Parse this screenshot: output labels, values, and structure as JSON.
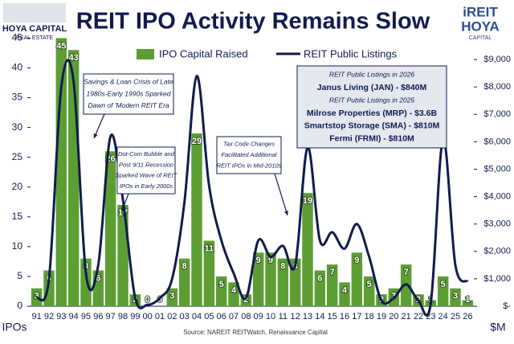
{
  "header": {
    "logo_left": [
      "HOYA CAPITAL",
      "REAL ESTATE"
    ],
    "logo_right": [
      "iREIT",
      "HOYA",
      "CAPITAL"
    ]
  },
  "chart_data": {
    "type": "bar",
    "title": "REIT IPO Activity Remains Slow",
    "source": "Source: NAREIT REITWatch, Renaissance Capital",
    "y_label": "IPOs",
    "y2_label": "$M",
    "categories": [
      "91",
      "92",
      "93",
      "94",
      "95",
      "96",
      "97",
      "98",
      "99",
      "00",
      "01",
      "02",
      "03",
      "04",
      "05",
      "06",
      "07",
      "08",
      "09",
      "10",
      "11",
      "12",
      "13",
      "14",
      "15",
      "16",
      "17",
      "18",
      "19",
      "20",
      "21",
      "22",
      "23",
      "24",
      "25",
      "26"
    ],
    "series": [
      {
        "name": "IPO Capital Raised",
        "type": "bar",
        "color": "#5c9e34",
        "values": [
          3,
          6,
          45,
          43,
          8,
          6,
          26,
          17,
          2,
          0,
          0,
          3,
          8,
          29,
          11,
          5,
          4,
          2,
          9,
          9,
          8,
          8,
          19,
          6,
          7,
          4,
          9,
          5,
          2,
          3,
          7,
          2,
          1,
          5,
          3,
          1
        ]
      },
      {
        "name": "REIT Public Listings",
        "type": "line",
        "axis": "y2",
        "color": "#101c4e",
        "values": [
          300,
          1000,
          8000,
          8200,
          1200,
          1500,
          6200,
          3900,
          300,
          50,
          300,
          1000,
          3800,
          8400,
          4400,
          2400,
          1200,
          300,
          2400,
          1800,
          2200,
          1500,
          5800,
          2400,
          2700,
          2100,
          3000,
          1800,
          200,
          300,
          800,
          200,
          100,
          6100,
          1500,
          900
        ]
      }
    ],
    "ylim": [
      0,
      46
    ],
    "yticks": [
      0,
      5,
      10,
      15,
      20,
      25,
      30,
      35,
      40,
      45
    ],
    "y2lim": [
      0,
      10000
    ],
    "y2ticks": [
      {
        "value": 0,
        "label": "$-"
      },
      {
        "value": 1000,
        "label": "$1,000"
      },
      {
        "value": 2000,
        "label": "$2,000"
      },
      {
        "value": 3000,
        "label": "$3,000"
      },
      {
        "value": 4000,
        "label": "$4,000"
      },
      {
        "value": 5000,
        "label": "$5,000"
      },
      {
        "value": 6000,
        "label": "$6,000"
      },
      {
        "value": 7000,
        "label": "$7,000"
      },
      {
        "value": 8000,
        "label": "$8,000"
      },
      {
        "value": 9000,
        "label": "$9,000"
      }
    ],
    "grid": false,
    "legend": "top",
    "annotations": [
      {
        "lines": [
          "Savings & Loan Crisis of Late",
          "1980s-Early 1990s Sparked",
          "Dawn of 'Modern REIT Era"
        ]
      },
      {
        "lines": [
          "Dot-Com Bubble and",
          "Post 9/11 Recession",
          "Sparked Wave of REIT",
          "IPOs in Early 2000s"
        ]
      },
      {
        "lines": [
          "Tax Code Changes",
          "Facilitated Additional",
          "REIT IPOs in Mid-2010s"
        ]
      },
      {
        "lines": [
          "REIT Public Listings in 2026",
          "Janus Living (JAN) - $840M",
          "REIT Public Listings in 2025",
          "Milrose Properties (MRP) - $3.6B",
          "Smartstop Storage (SMA) - $810M",
          "Fermi (FRMI) - $810M"
        ]
      }
    ]
  }
}
